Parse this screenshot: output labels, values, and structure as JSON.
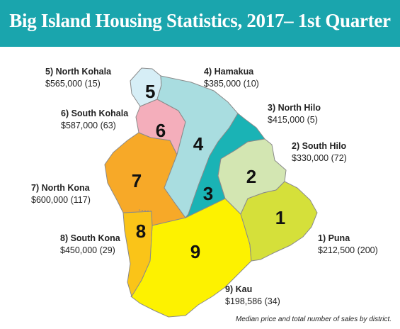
{
  "title": "Big Island Housing Statistics, 2017– 1st Quarter",
  "caption": "Median price and total number of sales by district.",
  "colors": {
    "header": "#1aa5ad",
    "puna": "#d5e03a",
    "south_hilo": "#d3e6b2",
    "north_hilo": "#1ab3b5",
    "hamakua": "#a9dde0",
    "north_kohala": "#d6eef6",
    "south_kohala": "#f4aebb",
    "north_kona": "#f7a928",
    "south_kona": "#fac418",
    "kau": "#fdf200"
  },
  "districts": [
    {
      "number": "1",
      "name": "1) Puna",
      "stats": "$212,500 (200)"
    },
    {
      "number": "2",
      "name": "2) South Hilo",
      "stats": "$330,000 (72)"
    },
    {
      "number": "3",
      "name": "3) North Hilo",
      "stats": "$415,000 (5)"
    },
    {
      "number": "4",
      "name": "4) Hamakua",
      "stats": "$385,000 (10)"
    },
    {
      "number": "5",
      "name": "5) North Kohala",
      "stats": "$565,000 (15)"
    },
    {
      "number": "6",
      "name": "6) South Kohala",
      "stats": "$587,000 (63)"
    },
    {
      "number": "7",
      "name": "7) North Kona",
      "stats": "$600,000 (117)"
    },
    {
      "number": "8",
      "name": "8) South Kona",
      "stats": "$450,000 (29)"
    },
    {
      "number": "9",
      "name": "9) Kau",
      "stats": "$198,586 (34)"
    }
  ]
}
